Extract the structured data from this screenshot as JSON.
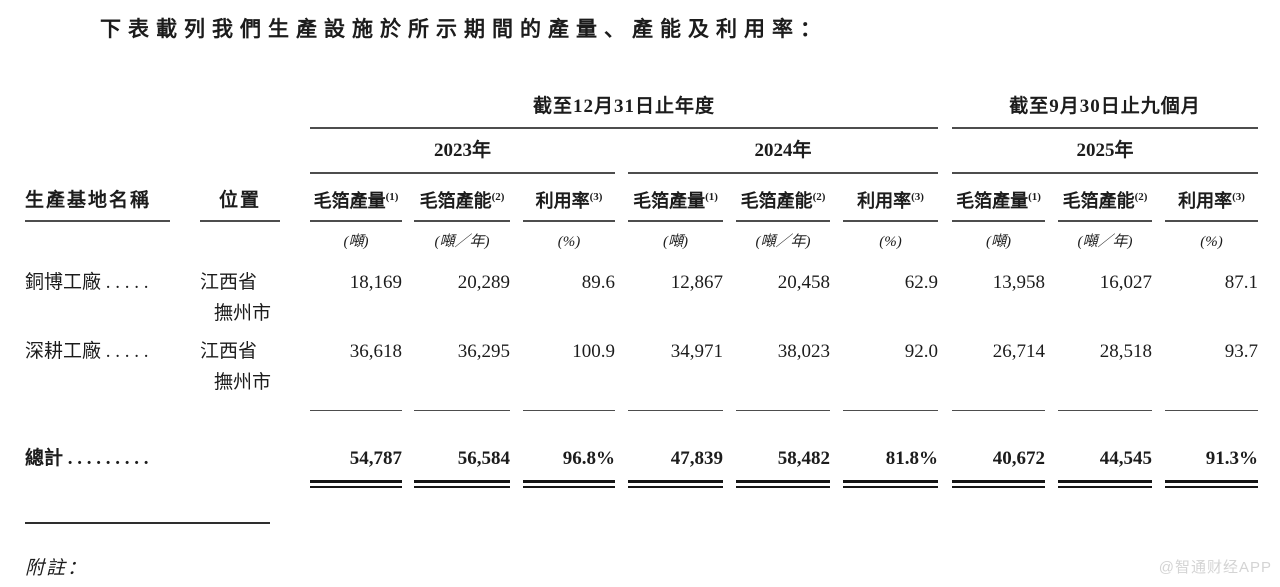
{
  "page": {
    "title": "下表載列我們生產設施於所示期間的產量、產能及利用率：",
    "notes_label": "附註：",
    "watermark": "@智通财经APP"
  },
  "table": {
    "groups": [
      {
        "label": "截至12月31日止年度"
      },
      {
        "label": "截至9月30日止九個月"
      }
    ],
    "years": [
      "2023年",
      "2024年",
      "2025年"
    ],
    "headers": {
      "name": "生產基地名稱",
      "location": "位置",
      "metrics": [
        {
          "label": "毛箔產量",
          "sup": "(1)",
          "unit": "(噸)"
        },
        {
          "label": "毛箔產能",
          "sup": "(2)",
          "unit": "(噸／年)"
        },
        {
          "label": "利用率",
          "sup": "(3)",
          "unit": "(%)"
        }
      ]
    },
    "rows": [
      {
        "name": "銅博工廠 . . . . .",
        "location_line1": "江西省",
        "location_line2": "撫州市",
        "values": [
          "18,169",
          "20,289",
          "89.6",
          "12,867",
          "20,458",
          "62.9",
          "13,958",
          "16,027",
          "87.1"
        ]
      },
      {
        "name": "深耕工廠 . . . . .",
        "location_line1": "江西省",
        "location_line2": "撫州市",
        "values": [
          "36,618",
          "36,295",
          "100.9",
          "34,971",
          "38,023",
          "92.0",
          "26,714",
          "28,518",
          "93.7"
        ]
      }
    ],
    "total": {
      "label": "總計 . . . . . . . . .",
      "values": [
        "54,787",
        "56,584",
        "96.8%",
        "47,839",
        "58,482",
        "81.8%",
        "40,672",
        "44,545",
        "91.3%"
      ]
    }
  }
}
